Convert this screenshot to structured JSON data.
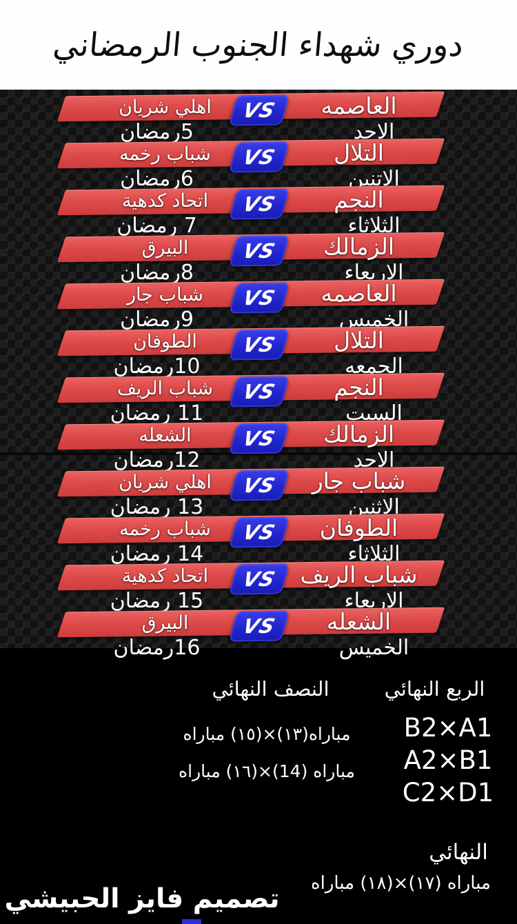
{
  "title": "دوري شهداء الجنوب الرمضاني",
  "vs_label": "VS",
  "matches": [
    {
      "home": "العاصمه",
      "away": "اهلي شريان",
      "day": "الاحد",
      "date": "5رمضان"
    },
    {
      "home": "التلال",
      "away": "شباب رخمه",
      "day": "الاتنين",
      "date": "6رمضان"
    },
    {
      "home": "النجم",
      "away": "اتحاد كدهية",
      "day": "الثلاثاء",
      "date": "7 رمضان"
    },
    {
      "home": "الزمالك",
      "away": "البيرق",
      "day": "الاربعاء",
      "date": "8رمضان"
    },
    {
      "home": "العاصمه",
      "away": "شباب جار",
      "day": "الخميس",
      "date": "9رمضان"
    },
    {
      "home": "التلال",
      "away": "الطوفان",
      "day": "الجمعه",
      "date": "10رمضان"
    },
    {
      "home": "النجم",
      "away": "شباب الريف",
      "day": "السبت",
      "date": "11 رمضان"
    },
    {
      "home": "الزمالك",
      "away": "الشعله",
      "day": "الاحد",
      "date": "12رمضان"
    },
    {
      "home": "شباب جار",
      "away": "اهلي شريان",
      "day": "الاثنين",
      "date": "13 رمضان"
    },
    {
      "home": "الطوفان",
      "away": "شباب رخمه",
      "day": "الثلاثاء",
      "date": "14 رمضان"
    },
    {
      "home": "شباب الريف",
      "away": "اتحاد كدهية",
      "day": "الاربعاء",
      "date": "15 رمضان"
    },
    {
      "home": "الشعله",
      "away": "البيرق",
      "day": "الخميس",
      "date": "16رمضان"
    }
  ],
  "knockout": {
    "quarter_title": "الربع النهائي",
    "semi_title": "النصف النهائي",
    "quarter_pairs": [
      "B2×A1",
      "A2×B1",
      "C2×D1"
    ],
    "semi_matches": [
      "مباراه(١٣)×(١٥) مباراه",
      "مباراه (14)×(١٦) مباراه"
    ],
    "final_title": "النهائي",
    "final_match": "مباراه (١٧)×(١٨) مباراه"
  },
  "credit": "تصميم فايز الحبيشي",
  "colors": {
    "banner_red": "#dd4b4b",
    "vs_blue": "#2226cd",
    "header_bg": "#fefefe",
    "schedule_bg": "#141414",
    "bottom_bg": "#000000",
    "text": "#ffffff"
  }
}
